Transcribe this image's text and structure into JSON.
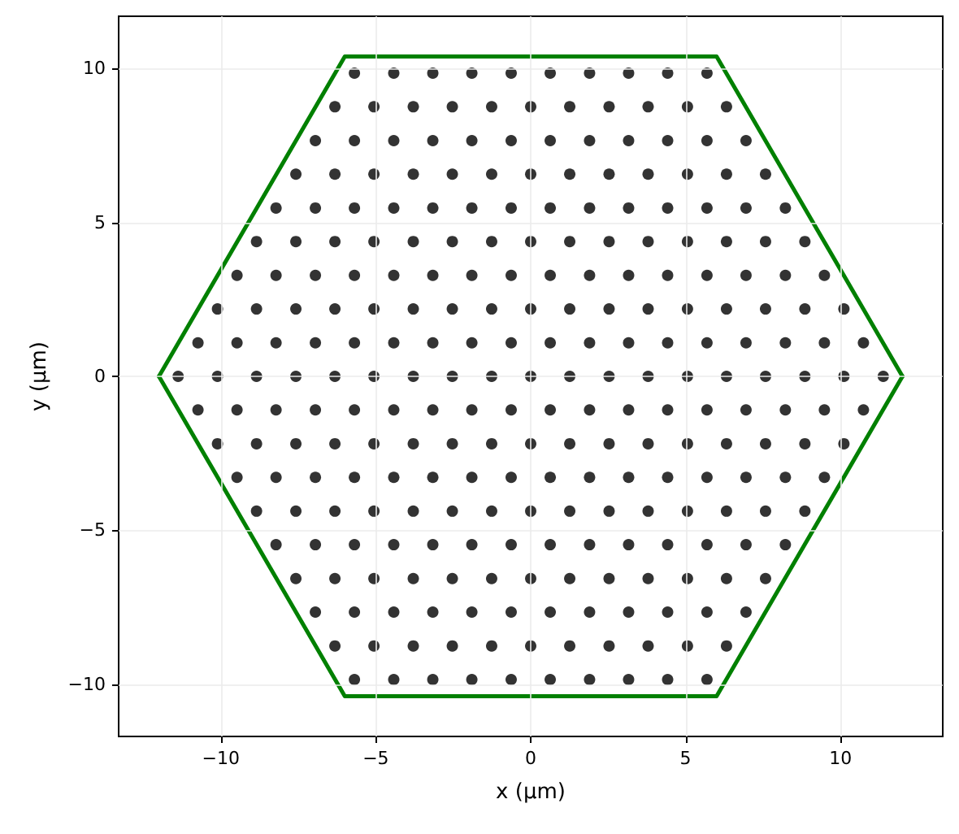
{
  "chart_data": {
    "type": "scatter",
    "xlabel": "x (µm)",
    "ylabel": "y (µm)",
    "xlim": [
      -13.3,
      13.3
    ],
    "ylim": [
      -11.7,
      11.7
    ],
    "xticks": [
      {
        "value": -10,
        "label": "−10"
      },
      {
        "value": -5,
        "label": "−5"
      },
      0,
      5,
      10
    ],
    "yticks": [
      {
        "value": -10,
        "label": "−10"
      },
      {
        "value": -5,
        "label": "−5"
      },
      0,
      5,
      10
    ],
    "grid": true,
    "marker": "circle",
    "series": [
      {
        "color": "#333333",
        "x": [
          -5.69,
          -4.42,
          -3.16,
          -1.9,
          -0.63,
          0.63,
          1.9,
          3.16,
          4.42,
          5.69
        ],
        "values": [
          9.85,
          9.85,
          9.85,
          9.85,
          9.85,
          9.85,
          9.85,
          9.85,
          9.85,
          9.85
        ]
      },
      {
        "color": "#333333",
        "x": [
          -6.32,
          -5.06,
          -3.79,
          -2.53,
          -1.26,
          0,
          1.26,
          2.53,
          3.79,
          5.06,
          6.32
        ],
        "values": [
          8.76,
          8.76,
          8.76,
          8.76,
          8.76,
          8.76,
          8.76,
          8.76,
          8.76,
          8.76,
          8.76
        ]
      },
      {
        "color": "#333333",
        "x": [
          -6.95,
          -5.69,
          -4.42,
          -3.16,
          -1.9,
          -0.63,
          0.63,
          1.9,
          3.16,
          4.42,
          5.69,
          6.95
        ],
        "values": [
          7.66,
          7.66,
          7.66,
          7.66,
          7.66,
          7.66,
          7.66,
          7.66,
          7.66,
          7.66,
          7.66,
          7.66
        ]
      },
      {
        "color": "#333333",
        "x": [
          -7.58,
          -6.32,
          -5.06,
          -3.79,
          -2.53,
          -1.26,
          0,
          1.26,
          2.53,
          3.79,
          5.06,
          6.32,
          7.58
        ],
        "values": [
          6.57,
          6.57,
          6.57,
          6.57,
          6.57,
          6.57,
          6.57,
          6.57,
          6.57,
          6.57,
          6.57,
          6.57,
          6.57
        ]
      },
      {
        "color": "#333333",
        "x": [
          -8.22,
          -6.95,
          -5.69,
          -4.42,
          -3.16,
          -1.9,
          -0.63,
          0.63,
          1.9,
          3.16,
          4.42,
          5.69,
          6.95,
          8.22
        ],
        "values": [
          5.47,
          5.47,
          5.47,
          5.47,
          5.47,
          5.47,
          5.47,
          5.47,
          5.47,
          5.47,
          5.47,
          5.47,
          5.47,
          5.47
        ]
      },
      {
        "color": "#333333",
        "x": [
          -8.85,
          -7.58,
          -6.32,
          -5.06,
          -3.79,
          -2.53,
          -1.26,
          0,
          1.26,
          2.53,
          3.79,
          5.06,
          6.32,
          7.58,
          8.85
        ],
        "values": [
          4.38,
          4.38,
          4.38,
          4.38,
          4.38,
          4.38,
          4.38,
          4.38,
          4.38,
          4.38,
          4.38,
          4.38,
          4.38,
          4.38,
          4.38
        ]
      },
      {
        "color": "#333333",
        "x": [
          -9.48,
          -8.22,
          -6.95,
          -5.69,
          -4.42,
          -3.16,
          -1.9,
          -0.63,
          0.63,
          1.9,
          3.16,
          4.42,
          5.69,
          6.95,
          8.22,
          9.48
        ],
        "values": [
          3.28,
          3.28,
          3.28,
          3.28,
          3.28,
          3.28,
          3.28,
          3.28,
          3.28,
          3.28,
          3.28,
          3.28,
          3.28,
          3.28,
          3.28,
          3.28
        ]
      },
      {
        "color": "#333333",
        "x": [
          -10.11,
          -8.85,
          -7.58,
          -6.32,
          -5.06,
          -3.79,
          -2.53,
          -1.26,
          0,
          1.26,
          2.53,
          3.79,
          5.06,
          6.32,
          7.58,
          8.85,
          10.11
        ],
        "values": [
          2.19,
          2.19,
          2.19,
          2.19,
          2.19,
          2.19,
          2.19,
          2.19,
          2.19,
          2.19,
          2.19,
          2.19,
          2.19,
          2.19,
          2.19,
          2.19,
          2.19
        ]
      },
      {
        "color": "#333333",
        "x": [
          -10.74,
          -9.48,
          -8.22,
          -6.95,
          -5.69,
          -4.42,
          -3.16,
          -1.9,
          -0.63,
          0.63,
          1.9,
          3.16,
          4.42,
          5.69,
          6.95,
          8.22,
          9.48,
          10.74
        ],
        "values": [
          1.09,
          1.09,
          1.09,
          1.09,
          1.09,
          1.09,
          1.09,
          1.09,
          1.09,
          1.09,
          1.09,
          1.09,
          1.09,
          1.09,
          1.09,
          1.09,
          1.09,
          1.09
        ]
      },
      {
        "color": "#333333",
        "x": [
          -11.38,
          -10.11,
          -8.85,
          -7.58,
          -6.32,
          -5.06,
          -3.79,
          -2.53,
          -1.26,
          0,
          1.26,
          2.53,
          3.79,
          5.06,
          6.32,
          7.58,
          8.85,
          10.11,
          11.38
        ],
        "values": [
          0,
          0,
          0,
          0,
          0,
          0,
          0,
          0,
          0,
          0,
          0,
          0,
          0,
          0,
          0,
          0,
          0,
          0,
          0
        ]
      },
      {
        "color": "#333333",
        "x": [
          -10.74,
          -9.48,
          -8.22,
          -6.95,
          -5.69,
          -4.42,
          -3.16,
          -1.9,
          -0.63,
          0.63,
          1.9,
          3.16,
          4.42,
          5.69,
          6.95,
          8.22,
          9.48,
          10.74
        ],
        "values": [
          -1.09,
          -1.09,
          -1.09,
          -1.09,
          -1.09,
          -1.09,
          -1.09,
          -1.09,
          -1.09,
          -1.09,
          -1.09,
          -1.09,
          -1.09,
          -1.09,
          -1.09,
          -1.09,
          -1.09,
          -1.09
        ]
      },
      {
        "color": "#333333",
        "x": [
          -10.11,
          -8.85,
          -7.58,
          -6.32,
          -5.06,
          -3.79,
          -2.53,
          -1.26,
          0,
          1.26,
          2.53,
          3.79,
          5.06,
          6.32,
          7.58,
          8.85,
          10.11
        ],
        "values": [
          -2.19,
          -2.19,
          -2.19,
          -2.19,
          -2.19,
          -2.19,
          -2.19,
          -2.19,
          -2.19,
          -2.19,
          -2.19,
          -2.19,
          -2.19,
          -2.19,
          -2.19,
          -2.19,
          -2.19
        ]
      },
      {
        "color": "#333333",
        "x": [
          -9.48,
          -8.22,
          -6.95,
          -5.69,
          -4.42,
          -3.16,
          -1.9,
          -0.63,
          0.63,
          1.9,
          3.16,
          4.42,
          5.69,
          6.95,
          8.22,
          9.48
        ],
        "values": [
          -3.28,
          -3.28,
          -3.28,
          -3.28,
          -3.28,
          -3.28,
          -3.28,
          -3.28,
          -3.28,
          -3.28,
          -3.28,
          -3.28,
          -3.28,
          -3.28,
          -3.28,
          -3.28
        ]
      },
      {
        "color": "#333333",
        "x": [
          -8.85,
          -7.58,
          -6.32,
          -5.06,
          -3.79,
          -2.53,
          -1.26,
          0,
          1.26,
          2.53,
          3.79,
          5.06,
          6.32,
          7.58,
          8.85
        ],
        "values": [
          -4.38,
          -4.38,
          -4.38,
          -4.38,
          -4.38,
          -4.38,
          -4.38,
          -4.38,
          -4.38,
          -4.38,
          -4.38,
          -4.38,
          -4.38,
          -4.38,
          -4.38
        ]
      },
      {
        "color": "#333333",
        "x": [
          -8.22,
          -6.95,
          -5.69,
          -4.42,
          -3.16,
          -1.9,
          -0.63,
          0.63,
          1.9,
          3.16,
          4.42,
          5.69,
          6.95,
          8.22
        ],
        "values": [
          -5.47,
          -5.47,
          -5.47,
          -5.47,
          -5.47,
          -5.47,
          -5.47,
          -5.47,
          -5.47,
          -5.47,
          -5.47,
          -5.47,
          -5.47,
          -5.47
        ]
      },
      {
        "color": "#333333",
        "x": [
          -7.58,
          -6.32,
          -5.06,
          -3.79,
          -2.53,
          -1.26,
          0,
          1.26,
          2.53,
          3.79,
          5.06,
          6.32,
          7.58
        ],
        "values": [
          -6.57,
          -6.57,
          -6.57,
          -6.57,
          -6.57,
          -6.57,
          -6.57,
          -6.57,
          -6.57,
          -6.57,
          -6.57,
          -6.57,
          -6.57
        ]
      },
      {
        "color": "#333333",
        "x": [
          -6.95,
          -5.69,
          -4.42,
          -3.16,
          -1.9,
          -0.63,
          0.63,
          1.9,
          3.16,
          4.42,
          5.69,
          6.95
        ],
        "values": [
          -7.66,
          -7.66,
          -7.66,
          -7.66,
          -7.66,
          -7.66,
          -7.66,
          -7.66,
          -7.66,
          -7.66,
          -7.66,
          -7.66
        ]
      },
      {
        "color": "#333333",
        "x": [
          -6.32,
          -5.06,
          -3.79,
          -2.53,
          -1.26,
          0,
          1.26,
          2.53,
          3.79,
          5.06,
          6.32
        ],
        "values": [
          -8.76,
          -8.76,
          -8.76,
          -8.76,
          -8.76,
          -8.76,
          -8.76,
          -8.76,
          -8.76,
          -8.76,
          -8.76
        ]
      },
      {
        "color": "#333333",
        "x": [
          -5.69,
          -4.42,
          -3.16,
          -1.9,
          -0.63,
          0.63,
          1.9,
          3.16,
          4.42,
          5.69
        ],
        "values": [
          -9.85,
          -9.85,
          -9.85,
          -9.85,
          -9.85,
          -9.85,
          -9.85,
          -9.85,
          -9.85,
          -9.85
        ]
      },
      {
        "type": "line",
        "color": "#008000",
        "marker": "none",
        "line_style": "solid",
        "x": [
          -12,
          -6,
          6,
          12
        ],
        "values": [
          0,
          10.39,
          10.39,
          0
        ]
      },
      {
        "type": "line",
        "color": "#008000",
        "marker": "none",
        "line_style": "solid",
        "x": [
          -12,
          -6,
          6,
          12
        ],
        "values": [
          0,
          -10.39,
          -10.39,
          0
        ]
      }
    ]
  }
}
